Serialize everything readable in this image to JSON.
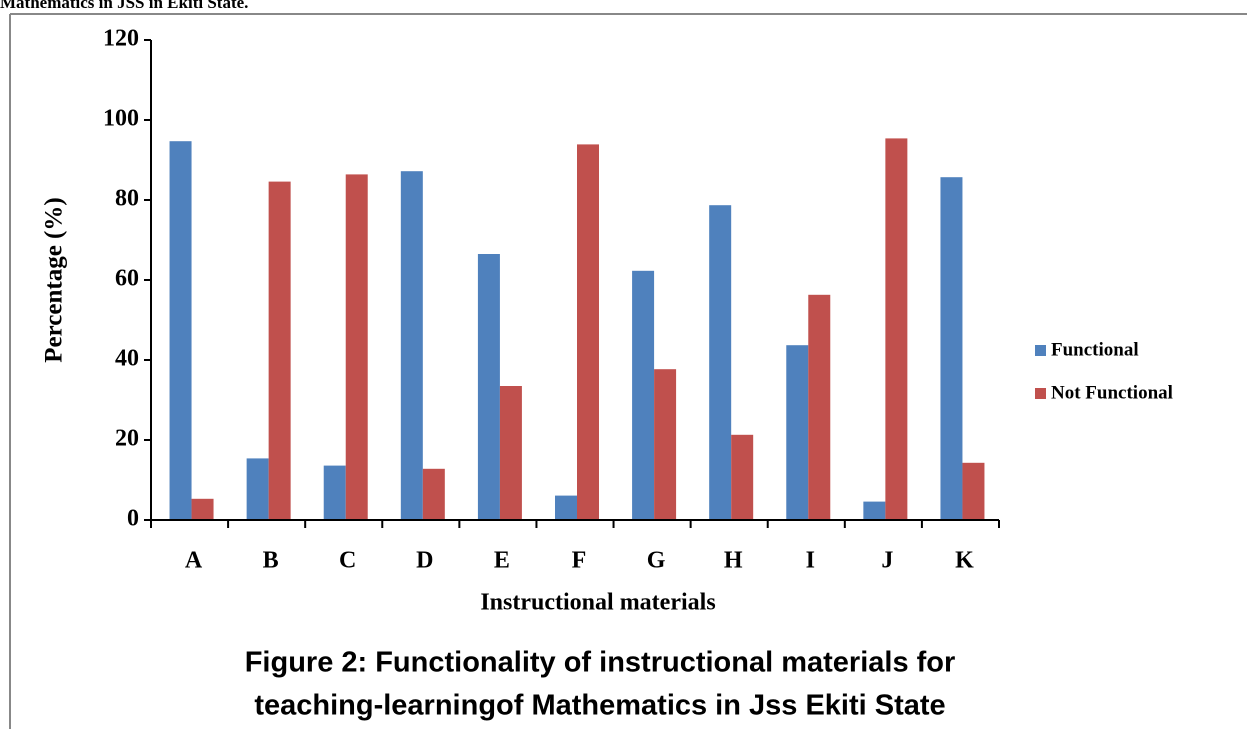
{
  "header": "Mathematics in JSS in Ekiti State.",
  "chart_data": {
    "type": "bar",
    "categories": [
      "A",
      "B",
      "C",
      "D",
      "E",
      "F",
      "G",
      "H",
      "I",
      "J",
      "K"
    ],
    "series": [
      {
        "name": "Functional",
        "color": "#4f81bd",
        "values": [
          94.7,
          15.4,
          13.6,
          87.2,
          66.5,
          6.1,
          62.3,
          78.7,
          43.7,
          4.6,
          85.7
        ]
      },
      {
        "name": "Not Functional",
        "color": "#c0504d",
        "values": [
          5.3,
          84.6,
          86.4,
          12.8,
          33.5,
          93.9,
          37.7,
          21.3,
          56.3,
          95.4,
          14.3
        ]
      }
    ],
    "ylim": [
      0,
      120
    ],
    "yticks": [
      0,
      20,
      40,
      60,
      80,
      100,
      120
    ],
    "ylabel": "Percentage (%)",
    "xlabel": "Instructional materials",
    "legend": "right",
    "grid": false
  },
  "caption": [
    "Figure 2: Functionality of instructional materials for",
    "teaching-learningof Mathematics in Jss Ekiti State"
  ]
}
